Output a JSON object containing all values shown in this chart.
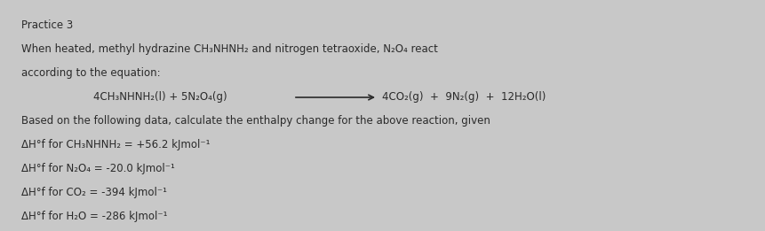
{
  "background_color": "#c8c8c8",
  "text_color": "#2a2a2a",
  "title": "Practice 3",
  "line1": "When heated, methyl hydrazine CH₃NHNH₂ and nitrogen tetraoxide, N₂O₄ react",
  "line2": "according to the equation:",
  "equation_left": "4CH₃NHNH₂(l) + 5N₂O₄(g)",
  "equation_right": "4CO₂(g)  +  9N₂(g)  +  12H₂O(l)",
  "line3_part1": "Based on the following data, calculate the enthalpy change for the above reaction, given",
  "data1": "ΔH°f for CH₃NHNH₂ = +56.2 kJmol⁻¹",
  "data2": "ΔH°f for N₂O₄ = -20.0 kJmol⁻¹",
  "data3": "ΔH°f for CO₂ = -394 kJmol⁻¹",
  "data4": "ΔH°f for H₂O = -286 kJmol⁻¹",
  "fontsize": 8.5
}
